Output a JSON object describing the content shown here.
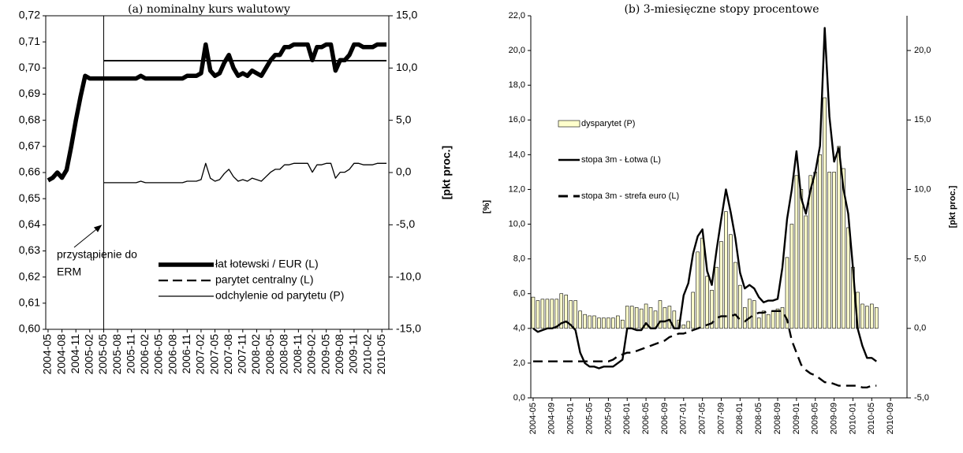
{
  "chart_data": [
    {
      "type": "line",
      "title": "(a) nominalny kurs walutowy",
      "y2_label": "[pkt proc.]",
      "categories": [
        "2004-05",
        null,
        null,
        "2004-08",
        null,
        null,
        "2004-11",
        null,
        null,
        "2005-02",
        null,
        null,
        "2005-05",
        null,
        null,
        "2005-08",
        null,
        null,
        "2005-11",
        null,
        null,
        "2006-02",
        null,
        null,
        "2006-05",
        null,
        null,
        "2006-08",
        null,
        null,
        "2006-11",
        null,
        null,
        "2007-02",
        null,
        null,
        "2007-05",
        null,
        null,
        "2007-08",
        null,
        null,
        "2007-11",
        null,
        null,
        "2008-02",
        null,
        null,
        "2008-05",
        null,
        null,
        "2008-08",
        null,
        null,
        "2008-11",
        null,
        null,
        "2009-02",
        null,
        null,
        "2009-05",
        null,
        null,
        "2009-08",
        null,
        null,
        "2009-11",
        null,
        null,
        "2010-02",
        null,
        null,
        "2010-05",
        null
      ],
      "ylim": [
        0.6,
        0.72
      ],
      "yticks": [
        {
          "value": 0.6,
          "label": "0,60"
        },
        {
          "value": 0.61,
          "label": "0,61"
        },
        {
          "value": 0.62,
          "label": "0,62"
        },
        {
          "value": 0.63,
          "label": "0,63"
        },
        {
          "value": 0.64,
          "label": "0,64"
        },
        {
          "value": 0.65,
          "label": "0,65"
        },
        {
          "value": 0.66,
          "label": "0,66"
        },
        {
          "value": 0.67,
          "label": "0,67"
        },
        {
          "value": 0.68,
          "label": "0,68"
        },
        {
          "value": 0.69,
          "label": "0,69"
        },
        {
          "value": 0.7,
          "label": "0,70"
        },
        {
          "value": 0.71,
          "label": "0,71"
        },
        {
          "value": 0.72,
          "label": "0,72"
        }
      ],
      "y2lim": [
        -15,
        15
      ],
      "y2ticks": [
        {
          "value": -15,
          "label": "-15,0"
        },
        {
          "value": -10,
          "label": "-10,0"
        },
        {
          "value": -5,
          "label": "-5,0"
        },
        {
          "value": 0,
          "label": "0,0"
        },
        {
          "value": 5,
          "label": "5,0"
        },
        {
          "value": 10,
          "label": "10,0"
        },
        {
          "value": 15,
          "label": "15,0"
        }
      ],
      "grid": false,
      "legend": "lower right",
      "annotation": {
        "lines": [
          "przystąpienie do",
          "ERM"
        ],
        "at": "2005-05"
      },
      "series": [
        {
          "name": "łat łotewski / EUR (L)",
          "color": "#000000",
          "line_style": "bold",
          "values": [
            0.657,
            0.658,
            0.66,
            0.658,
            0.661,
            0.67,
            0.68,
            0.689,
            0.697,
            0.696,
            0.696,
            0.696,
            0.696,
            0.696,
            0.696,
            0.696,
            0.696,
            0.696,
            0.696,
            0.696,
            0.697,
            0.696,
            0.696,
            0.696,
            0.696,
            0.696,
            0.696,
            0.696,
            0.696,
            0.696,
            0.697,
            0.697,
            0.697,
            0.698,
            0.709,
            0.699,
            0.697,
            0.698,
            0.702,
            0.705,
            0.7,
            0.697,
            0.698,
            0.697,
            0.699,
            0.698,
            0.697,
            0.7,
            0.703,
            0.705,
            0.705,
            0.708,
            0.708,
            0.709,
            0.709,
            0.709,
            0.709,
            0.703,
            0.708,
            0.708,
            0.709,
            0.709,
            0.699,
            0.703,
            0.703,
            0.705,
            0.709,
            0.709,
            0.708,
            0.708,
            0.708,
            0.709,
            0.709,
            0.709
          ]
        },
        {
          "name": "parytet centralny (L)",
          "color": "#000000",
          "line_style": "dashed-legend",
          "values": [
            null,
            null,
            null,
            null,
            null,
            null,
            null,
            null,
            null,
            null,
            null,
            null,
            0.7028,
            0.7028,
            0.7028,
            0.7028,
            0.7028,
            0.7028,
            0.7028,
            0.7028,
            0.7028,
            0.7028,
            0.7028,
            0.7028,
            0.7028,
            0.7028,
            0.7028,
            0.7028,
            0.7028,
            0.7028,
            0.7028,
            0.7028,
            0.7028,
            0.7028,
            0.7028,
            0.7028,
            0.7028,
            0.7028,
            0.7028,
            0.7028,
            0.7028,
            0.7028,
            0.7028,
            0.7028,
            0.7028,
            0.7028,
            0.7028,
            0.7028,
            0.7028,
            0.7028,
            0.7028,
            0.7028,
            0.7028,
            0.7028,
            0.7028,
            0.7028,
            0.7028,
            0.7028,
            0.7028,
            0.7028,
            0.7028,
            0.7028,
            0.7028,
            0.7028,
            0.7028,
            0.7028,
            0.7028,
            0.7028,
            0.7028,
            0.7028,
            0.7028,
            0.7028,
            0.7028,
            0.7028
          ]
        },
        {
          "name": "odchylenie od parytetu (P)",
          "color": "#000000",
          "line_style": "solid",
          "axis": "y2",
          "values": [
            null,
            null,
            null,
            null,
            null,
            null,
            null,
            null,
            null,
            null,
            null,
            null,
            -0.97,
            -0.97,
            -0.97,
            -0.97,
            -0.97,
            -0.97,
            -0.97,
            -0.97,
            -0.83,
            -0.97,
            -0.97,
            -0.97,
            -0.97,
            -0.97,
            -0.97,
            -0.97,
            -0.97,
            -0.97,
            -0.83,
            -0.83,
            -0.83,
            -0.68,
            0.88,
            -0.54,
            -0.83,
            -0.68,
            -0.11,
            0.31,
            -0.4,
            -0.83,
            -0.68,
            -0.83,
            -0.54,
            -0.68,
            -0.83,
            -0.4,
            0.03,
            0.31,
            0.31,
            0.74,
            0.74,
            0.88,
            0.88,
            0.88,
            0.88,
            0.03,
            0.74,
            0.74,
            0.88,
            0.88,
            -0.54,
            0.03,
            0.03,
            0.31,
            0.88,
            0.88,
            0.74,
            0.74,
            0.74,
            0.88,
            0.88,
            0.88
          ]
        }
      ]
    },
    {
      "type": "combo",
      "title": "(b) 3-miesięczne stopy procentowe",
      "y_label": "[%]",
      "y2_label": "[pkt proc.]",
      "categories": [
        "2004-05",
        null,
        null,
        null,
        "2004-09",
        null,
        null,
        null,
        "2005-01",
        null,
        null,
        null,
        "2005-05",
        null,
        null,
        null,
        "2005-09",
        null,
        null,
        null,
        "2006-01",
        null,
        null,
        null,
        "2006-05",
        null,
        null,
        null,
        "2006-09",
        null,
        null,
        null,
        "2007-01",
        null,
        null,
        null,
        "2007-05",
        null,
        null,
        null,
        "2007-09",
        null,
        null,
        null,
        "2008-01",
        null,
        null,
        null,
        "2008-05",
        null,
        null,
        null,
        "2008-09",
        null,
        null,
        null,
        "2009-01",
        null,
        null,
        null,
        "2009-05",
        null,
        null,
        null,
        "2009-09",
        null,
        null,
        null,
        "2010-01",
        null,
        null,
        null,
        "2010-05",
        null,
        null,
        null,
        "2010-09",
        null,
        null,
        null
      ],
      "ylim": [
        0,
        22
      ],
      "yticks": [
        {
          "value": 0,
          "label": "0,0"
        },
        {
          "value": 2,
          "label": "2,0"
        },
        {
          "value": 4,
          "label": "4,0"
        },
        {
          "value": 6,
          "label": "6,0"
        },
        {
          "value": 8,
          "label": "8,0"
        },
        {
          "value": 10,
          "label": "10,0"
        },
        {
          "value": 12,
          "label": "12,0"
        },
        {
          "value": 14,
          "label": "14,0"
        },
        {
          "value": 16,
          "label": "16,0"
        },
        {
          "value": 18,
          "label": "18,0"
        },
        {
          "value": 20,
          "label": "20,0"
        },
        {
          "value": 22,
          "label": "22,0"
        }
      ],
      "y2lim": [
        -5,
        22.5
      ],
      "y2ticks": [
        {
          "value": -5,
          "label": "-5,0"
        },
        {
          "value": 0,
          "label": "0,0"
        },
        {
          "value": 5,
          "label": "5,0"
        },
        {
          "value": 10,
          "label": "10,0"
        },
        {
          "value": 15,
          "label": "15,0"
        },
        {
          "value": 20,
          "label": "20,0"
        }
      ],
      "grid": false,
      "legend": "upper left",
      "series": [
        {
          "name": "dysparytet (P)",
          "type": "bar",
          "color": "#ffffcc",
          "axis": "y2",
          "values": [
            2.25,
            2.0,
            2.1,
            2.1,
            2.1,
            2.1,
            2.5,
            2.4,
            2.0,
            2.0,
            1.25,
            1.0,
            0.9,
            0.9,
            0.75,
            0.75,
            0.75,
            0.75,
            0.9,
            0.6,
            1.6,
            1.6,
            1.5,
            1.4,
            1.75,
            1.5,
            1.25,
            2.0,
            1.5,
            1.6,
            1.25,
            0.6,
            0.25,
            0.5,
            2.6,
            5.5,
            6.5,
            3.75,
            2.75,
            4.4,
            6.25,
            8.4,
            6.75,
            4.75,
            3.1,
            1.5,
            2.1,
            2.0,
            0.75,
            1.25,
            1.0,
            1.25,
            1.4,
            1.5,
            5.1,
            7.5,
            11.0,
            10.0,
            8.1,
            11.0,
            11.25,
            12.5,
            16.6,
            11.25,
            11.25,
            13.1,
            11.5,
            7.25,
            4.4,
            2.6,
            1.75,
            1.6,
            1.75,
            1.5,
            null,
            null,
            null,
            null,
            null,
            null
          ]
        },
        {
          "name": "stopa 3m - Łotwa (L)",
          "type": "line",
          "color": "#000000",
          "line_style": "medium",
          "values": [
            4.0,
            3.8,
            3.9,
            4.0,
            4.0,
            4.1,
            4.3,
            4.4,
            4.2,
            3.9,
            2.6,
            2.0,
            1.8,
            1.8,
            1.7,
            1.8,
            1.8,
            1.8,
            2.0,
            2.2,
            4.0,
            4.0,
            3.9,
            3.9,
            4.3,
            4.0,
            4.0,
            4.4,
            4.4,
            4.5,
            4.0,
            4.0,
            5.9,
            6.6,
            8.3,
            9.3,
            9.7,
            7.3,
            6.5,
            8.5,
            10.3,
            12.0,
            10.7,
            9.2,
            7.2,
            6.3,
            6.5,
            6.3,
            5.8,
            5.5,
            5.6,
            5.6,
            5.7,
            7.5,
            10.3,
            12.0,
            14.2,
            11.5,
            10.6,
            12.0,
            13.0,
            14.5,
            21.3,
            16.2,
            13.6,
            14.4,
            12.0,
            10.6,
            7.5,
            4.0,
            3.0,
            2.3,
            2.3,
            2.1,
            null,
            null,
            null,
            null,
            null,
            null
          ]
        },
        {
          "name": "stopa 3m - strefa euro (L)",
          "type": "line",
          "color": "#000000",
          "line_style": "dashed",
          "values": [
            2.1,
            2.1,
            2.1,
            2.1,
            2.1,
            2.1,
            2.1,
            2.1,
            2.1,
            2.1,
            2.1,
            2.1,
            2.1,
            2.1,
            2.1,
            2.1,
            2.1,
            2.2,
            2.4,
            2.5,
            2.6,
            2.6,
            2.7,
            2.8,
            2.9,
            3.0,
            3.1,
            3.2,
            3.3,
            3.5,
            3.6,
            3.7,
            3.7,
            3.8,
            3.9,
            4.0,
            4.1,
            4.2,
            4.3,
            4.6,
            4.7,
            4.7,
            4.7,
            4.8,
            4.5,
            4.4,
            4.6,
            4.8,
            4.9,
            4.9,
            5.0,
            5.0,
            5.0,
            5.0,
            4.5,
            3.3,
            2.6,
            1.9,
            1.6,
            1.4,
            1.3,
            1.1,
            0.9,
            0.9,
            0.8,
            0.7,
            0.7,
            0.7,
            0.7,
            0.7,
            0.6,
            0.6,
            0.7,
            0.7,
            null,
            null,
            null,
            null,
            null,
            null
          ]
        }
      ]
    }
  ]
}
